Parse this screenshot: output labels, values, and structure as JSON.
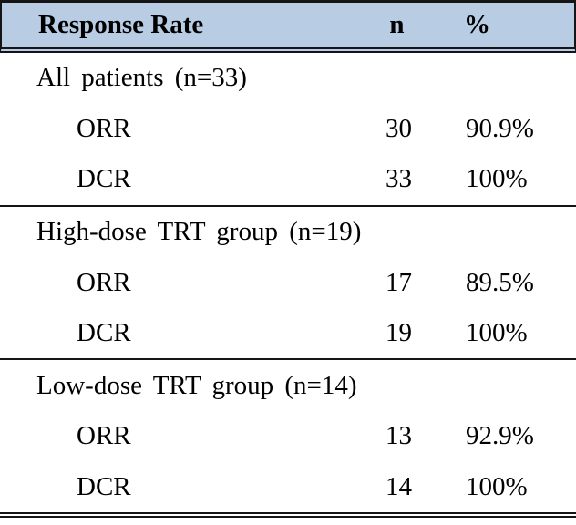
{
  "table": {
    "header": {
      "label": "Response Rate",
      "col_n": "n",
      "col_pct": "%"
    },
    "sections": [
      {
        "group": "All patients (n=33)",
        "rows": [
          {
            "label": "ORR",
            "n": "30",
            "pct": "90.9%"
          },
          {
            "label": "DCR",
            "n": "33",
            "pct": "100%"
          }
        ]
      },
      {
        "group": "High-dose TRT group (n=19)",
        "rows": [
          {
            "label": "ORR",
            "n": "17",
            "pct": "89.5%"
          },
          {
            "label": "DCR",
            "n": "19",
            "pct": "100%"
          }
        ]
      },
      {
        "group": "Low-dose TRT group (n=14)",
        "rows": [
          {
            "label": "ORR",
            "n": "13",
            "pct": "92.9%"
          },
          {
            "label": "DCR",
            "n": "14",
            "pct": "100%"
          }
        ]
      }
    ]
  },
  "colors": {
    "header_bg": "#b8cce4",
    "rule": "#151515",
    "text": "#000000",
    "background": "#ffffff"
  }
}
